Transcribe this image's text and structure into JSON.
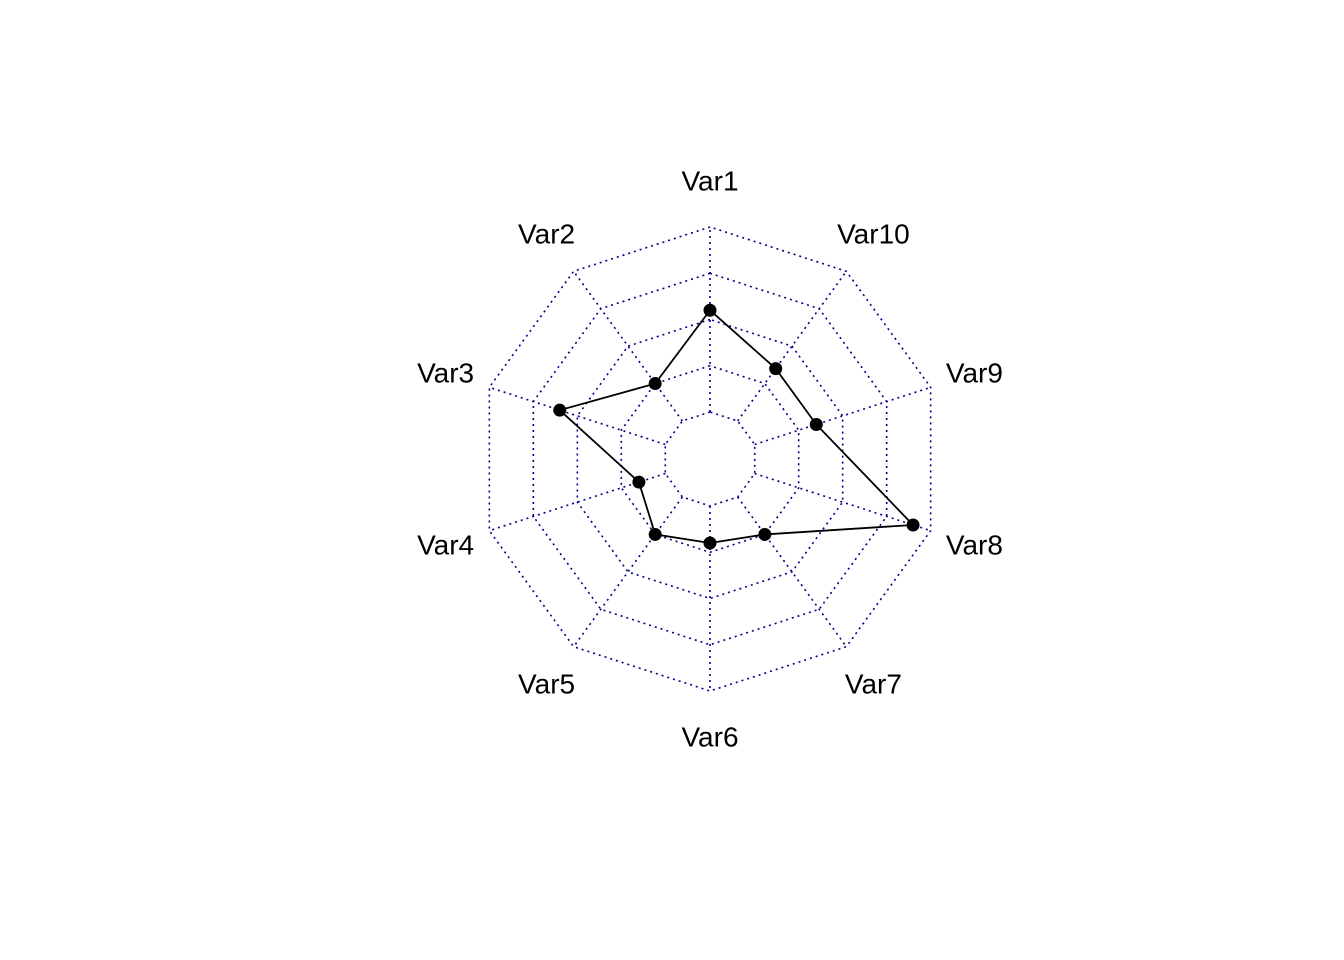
{
  "chart_data": {
    "type": "radar",
    "title": "",
    "axes": [
      "Var1",
      "Var2",
      "Var3",
      "Var4",
      "Var5",
      "Var6",
      "Var7",
      "Var8",
      "Var9",
      "Var10"
    ],
    "axis_order": "counter-clockwise from top",
    "series": [
      {
        "values": [
          0.55,
          0.25,
          0.6,
          0.15,
          0.25,
          0.2,
          0.25,
          0.9,
          0.35,
          0.35
        ]
      }
    ],
    "range": [
      0,
      1
    ],
    "grid_levels": 5,
    "grid_style": "dotted",
    "grid_color": "#00008B",
    "series_color": "#000000"
  }
}
